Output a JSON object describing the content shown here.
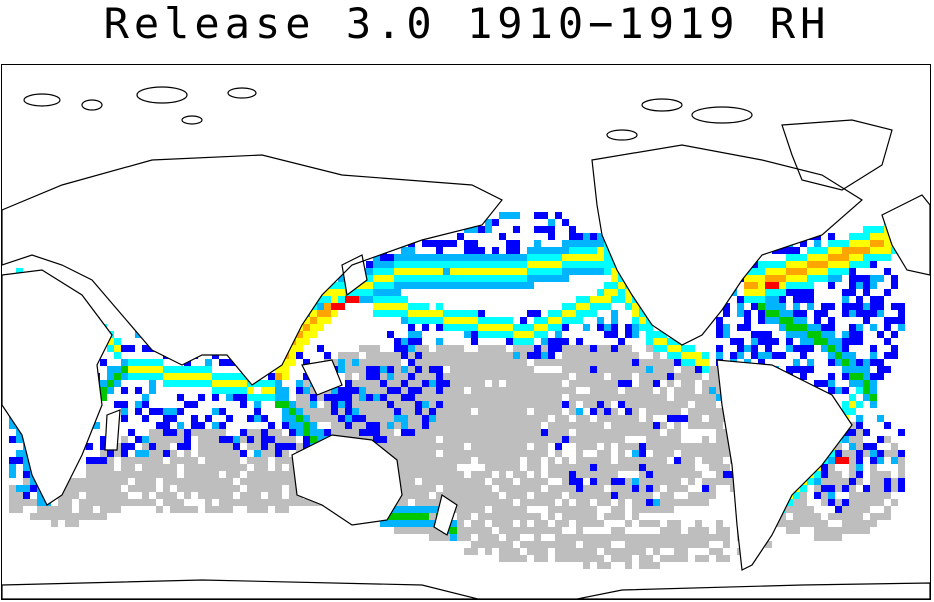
{
  "title": "Release 3.0 1910−1919 RH",
  "map": {
    "projection": "equirectangular-pacific-centered",
    "grid": false,
    "colors": {
      "coastline": "#000000",
      "land": "#ffffff",
      "sparse": "#bebebe",
      "level_1": "#0000ff",
      "level_2": "#00b4ff",
      "level_3": "#00ffff",
      "level_4": "#00c800",
      "level_5": "#ffff00",
      "level_6": "#ffa500",
      "level_7": "#ff0000"
    }
  }
}
